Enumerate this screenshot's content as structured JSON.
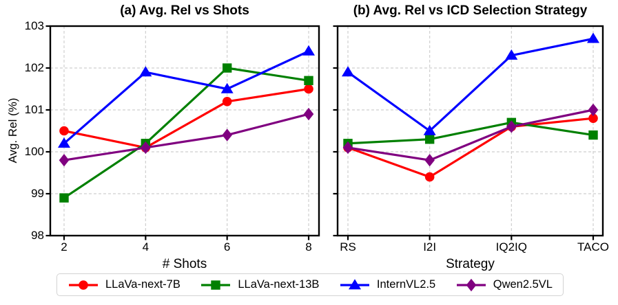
{
  "chart_data": [
    {
      "type": "line",
      "title": "(a) Avg. Rel vs Shots",
      "xlabel": "# Shots",
      "ylabel": "Avg. Rel (%)",
      "categories": [
        "2",
        "4",
        "6",
        "8"
      ],
      "ylim": [
        98,
        103
      ],
      "yticks": [
        98,
        99,
        100,
        101,
        102,
        103
      ],
      "ytick_labels": [
        "98",
        "99",
        "100",
        "101",
        "102",
        "103"
      ],
      "grid": true,
      "legend_position": "bottom",
      "series": [
        {
          "name": "LLaVa-next-7B",
          "color": "#ff0000",
          "marker": "circle",
          "values": [
            100.5,
            100.1,
            101.2,
            101.5
          ]
        },
        {
          "name": "LLaVa-next-13B",
          "color": "#008000",
          "marker": "square",
          "values": [
            98.9,
            100.2,
            102.0,
            101.7
          ]
        },
        {
          "name": "InternVL2.5",
          "color": "#0000ff",
          "marker": "triangle",
          "values": [
            100.2,
            101.9,
            101.5,
            102.4
          ]
        },
        {
          "name": "Qwen2.5VL",
          "color": "#800080",
          "marker": "diamond",
          "values": [
            99.8,
            100.1,
            100.4,
            100.9
          ]
        }
      ]
    },
    {
      "type": "line",
      "title": "(b) Avg. Rel vs ICD Selection Strategy",
      "xlabel": "Strategy",
      "ylabel": "",
      "categories": [
        "RS",
        "I2I",
        "IQ2IQ",
        "TACO"
      ],
      "ylim": [
        98,
        103
      ],
      "yticks": [
        98,
        99,
        100,
        101,
        102,
        103
      ],
      "ytick_labels": [],
      "grid": true,
      "series": [
        {
          "name": "LLaVa-next-7B",
          "color": "#ff0000",
          "marker": "circle",
          "values": [
            100.1,
            99.4,
            100.6,
            100.8
          ]
        },
        {
          "name": "LLaVa-next-13B",
          "color": "#008000",
          "marker": "square",
          "values": [
            100.2,
            100.3,
            100.7,
            100.4
          ]
        },
        {
          "name": "InternVL2.5",
          "color": "#0000ff",
          "marker": "triangle",
          "values": [
            101.9,
            100.5,
            102.3,
            102.7
          ]
        },
        {
          "name": "Qwen2.5VL",
          "color": "#800080",
          "marker": "diamond",
          "values": [
            100.1,
            99.8,
            100.6,
            101.0
          ]
        }
      ]
    }
  ],
  "legend": {
    "items": [
      {
        "label": "LLaVa-next-7B",
        "color": "#ff0000",
        "marker": "circle"
      },
      {
        "label": "LLaVa-next-13B",
        "color": "#008000",
        "marker": "square"
      },
      {
        "label": "InternVL2.5",
        "color": "#0000ff",
        "marker": "triangle"
      },
      {
        "label": "Qwen2.5VL",
        "color": "#800080",
        "marker": "diamond"
      }
    ]
  },
  "style": {
    "grid_color": "#cfcfcf",
    "axis_color": "#000000",
    "background": "#ffffff"
  }
}
